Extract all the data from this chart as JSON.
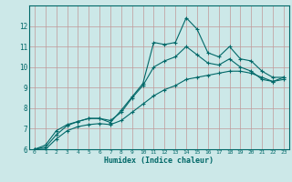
{
  "title": "",
  "xlabel": "Humidex (Indice chaleur)",
  "ylabel": "",
  "xlim": [
    -0.5,
    23.5
  ],
  "ylim": [
    6,
    13
  ],
  "yticks": [
    6,
    7,
    8,
    9,
    10,
    11,
    12
  ],
  "xticks": [
    0,
    1,
    2,
    3,
    4,
    5,
    6,
    7,
    8,
    9,
    10,
    11,
    12,
    13,
    14,
    15,
    16,
    17,
    18,
    19,
    20,
    21,
    22,
    23
  ],
  "background_color": "#cce8e8",
  "grid_color": "#c09898",
  "line_color": "#006868",
  "line1_x": [
    0,
    1,
    2,
    3,
    4,
    5,
    6,
    7,
    8,
    9,
    10,
    11,
    12,
    13,
    14,
    15,
    16,
    17,
    18,
    19,
    20,
    21,
    22,
    23
  ],
  "line1_y": [
    6.0,
    6.2,
    6.9,
    7.2,
    7.35,
    7.5,
    7.5,
    7.3,
    7.9,
    8.55,
    9.2,
    11.2,
    11.1,
    11.2,
    12.4,
    11.85,
    10.7,
    10.5,
    11.0,
    10.4,
    10.3,
    9.8,
    9.5,
    9.5
  ],
  "line2_x": [
    0,
    1,
    2,
    3,
    4,
    5,
    6,
    7,
    8,
    9,
    10,
    11,
    12,
    13,
    14,
    15,
    16,
    17,
    18,
    19,
    20,
    21,
    22,
    23
  ],
  "line2_y": [
    6.0,
    6.1,
    6.7,
    7.15,
    7.35,
    7.5,
    7.5,
    7.4,
    7.8,
    8.5,
    9.1,
    10.0,
    10.3,
    10.5,
    11.0,
    10.6,
    10.2,
    10.1,
    10.4,
    10.0,
    9.8,
    9.4,
    9.3,
    9.5
  ],
  "line3_x": [
    0,
    1,
    2,
    3,
    4,
    5,
    6,
    7,
    8,
    9,
    10,
    11,
    12,
    13,
    14,
    15,
    16,
    17,
    18,
    19,
    20,
    21,
    22,
    23
  ],
  "line3_y": [
    6.0,
    6.0,
    6.5,
    6.9,
    7.1,
    7.2,
    7.25,
    7.2,
    7.4,
    7.8,
    8.2,
    8.6,
    8.9,
    9.1,
    9.4,
    9.5,
    9.6,
    9.7,
    9.8,
    9.8,
    9.7,
    9.5,
    9.3,
    9.4
  ]
}
